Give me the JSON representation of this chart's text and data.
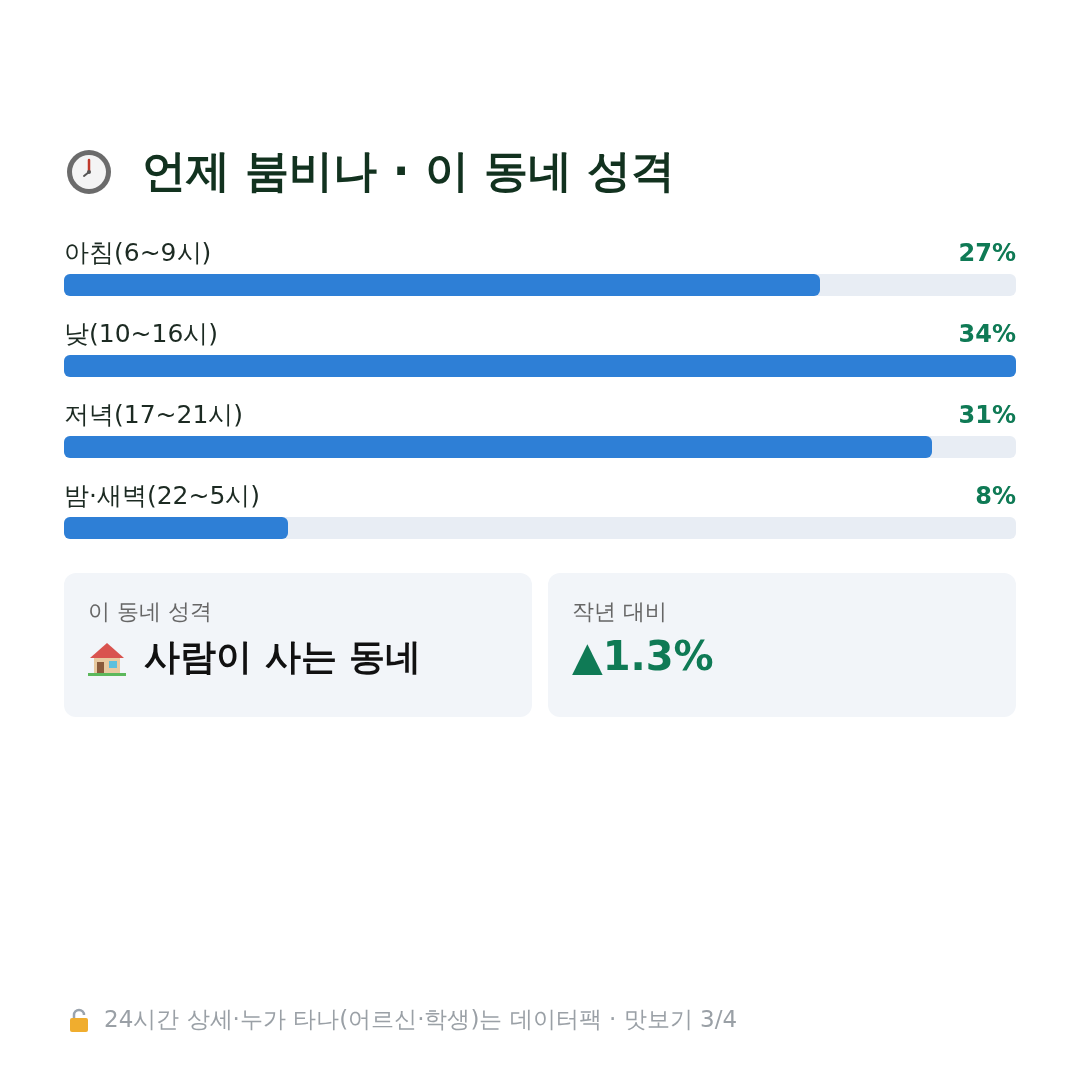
{
  "chart_data": {
    "type": "bar",
    "orientation": "horizontal",
    "title": "언제 붐비나 · 이 동네 성격",
    "categories": [
      "아침(6~9시)",
      "낮(10~16시)",
      "저녁(17~21시)",
      "밤·새벽(22~5시)"
    ],
    "values": [
      27,
      34,
      31,
      8
    ],
    "value_labels": [
      "27%",
      "34%",
      "31%",
      "8%"
    ],
    "color": "#2e7fd6",
    "xlim": [
      0,
      34
    ],
    "annotations": [
      "이 동네 성격",
      "사람이 사는 동네",
      "작년 대비",
      "▲1.3%",
      "24시간 상세·누가 타나(어르신·학생)는 데이터팩 · 맛보기 3/4"
    ]
  }
}
